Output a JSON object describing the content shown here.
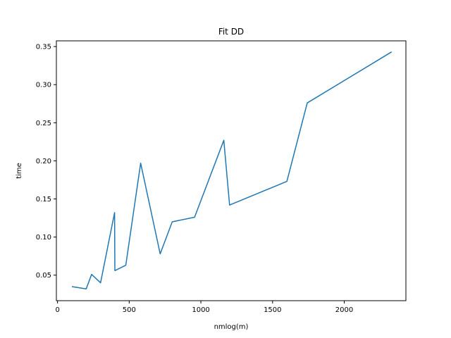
{
  "chart_data": {
    "type": "line",
    "title": "Fit DD",
    "xlabel": "nmlog(m)",
    "ylabel": "time",
    "xlim": [
      -8,
      2430
    ],
    "ylim": [
      0.0165,
      0.3575
    ],
    "x_ticks": [
      0,
      500,
      1000,
      1500,
      2000
    ],
    "y_ticks": [
      0.05,
      0.1,
      0.15,
      0.2,
      0.25,
      0.3,
      0.35
    ],
    "grid": false,
    "series": [
      {
        "color": "#1f77b4",
        "x": [
          100,
          200,
          238,
          300,
          398,
          400,
          476,
          580,
          716,
          800,
          956,
          1160,
          1200,
          1600,
          1742,
          2330
        ],
        "y": [
          0.035,
          0.032,
          0.051,
          0.04,
          0.132,
          0.056,
          0.063,
          0.197,
          0.078,
          0.12,
          0.126,
          0.227,
          0.142,
          0.173,
          0.276,
          0.343
        ]
      }
    ]
  }
}
